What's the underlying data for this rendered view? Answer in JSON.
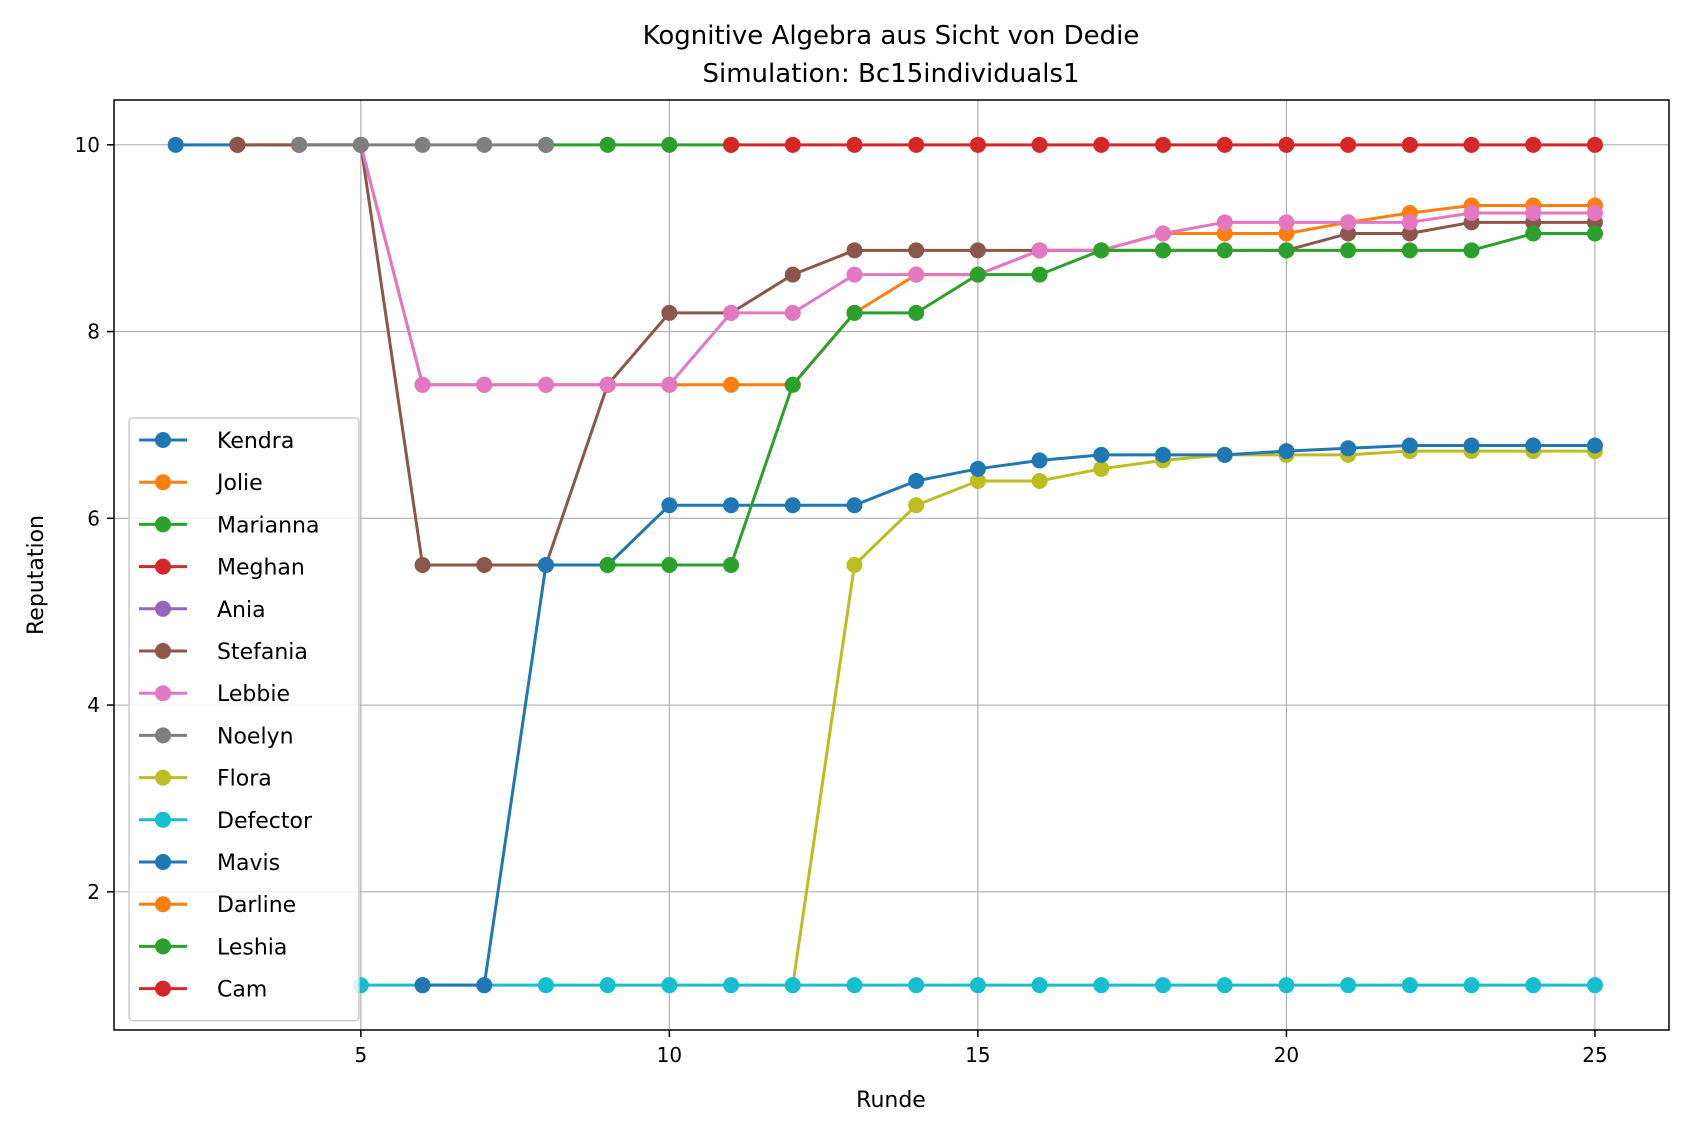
{
  "chart_data": {
    "type": "line",
    "title": "Kognitive Algebra aus Sicht von Dedie",
    "subtitle": "Simulation: Bc15individuals1",
    "xlabel": "Runde",
    "ylabel": "Reputation",
    "xlim": [
      1,
      26.2
    ],
    "ylim": [
      0.52,
      10.48
    ],
    "xticks": [
      5,
      10,
      15,
      20,
      25
    ],
    "yticks": [
      2,
      4,
      6,
      8,
      10
    ],
    "grid": true,
    "legend_position": "lower-left",
    "series": [
      {
        "name": "Kendra",
        "color": "#1f77b4",
        "x": [
          2,
          3
        ],
        "y": [
          10,
          10
        ]
      },
      {
        "name": "Jolie",
        "color": "#ff7f0e",
        "x": [
          3,
          4,
          5,
          6,
          7,
          8,
          9,
          10,
          11,
          12,
          13,
          14,
          15,
          16,
          17,
          18,
          19,
          20,
          21,
          22,
          23,
          24,
          25
        ],
        "y": [
          10,
          10,
          10,
          7.43,
          7.43,
          7.43,
          7.43,
          7.43,
          7.43,
          7.43,
          8.2,
          8.61,
          8.61,
          8.87,
          8.87,
          9.05,
          9.05,
          9.05,
          9.17,
          9.27,
          9.35,
          9.35,
          9.35
        ]
      },
      {
        "name": "Marianna",
        "color": "#2ca02c",
        "x": [
          8,
          9,
          10,
          11
        ],
        "y": [
          10,
          10,
          10,
          10
        ]
      },
      {
        "name": "Meghan",
        "color": "#d62728",
        "x": [
          11,
          12,
          13,
          14,
          15,
          16,
          17,
          18,
          19,
          20,
          21,
          22,
          23,
          24,
          25
        ],
        "y": [
          10,
          10,
          10,
          10,
          10,
          10,
          10,
          10,
          10,
          10,
          10,
          10,
          10,
          10,
          10
        ]
      },
      {
        "name": "Ania",
        "color": "#9467bd",
        "x": [],
        "y": []
      },
      {
        "name": "Stefania",
        "color": "#8c564b",
        "x": [
          3,
          4,
          5,
          6,
          7,
          8,
          9,
          10,
          11,
          12,
          13,
          14,
          15,
          16,
          17,
          18,
          19,
          20,
          21,
          22,
          23,
          24,
          25
        ],
        "y": [
          10,
          10,
          10,
          5.5,
          5.5,
          5.5,
          7.43,
          8.2,
          8.2,
          8.61,
          8.87,
          8.87,
          8.87,
          8.87,
          8.87,
          8.87,
          8.87,
          8.87,
          9.05,
          9.05,
          9.17,
          9.17,
          9.17
        ]
      },
      {
        "name": "Lebbie",
        "color": "#e377c2",
        "x": [
          5,
          6,
          7,
          8,
          9,
          10,
          11,
          12,
          13,
          14,
          15,
          16,
          17,
          18,
          19,
          20,
          21,
          22,
          23,
          24,
          25
        ],
        "y": [
          10,
          7.43,
          7.43,
          7.43,
          7.43,
          7.43,
          8.2,
          8.2,
          8.61,
          8.61,
          8.61,
          8.87,
          8.87,
          9.05,
          9.17,
          9.17,
          9.17,
          9.17,
          9.27,
          9.27,
          9.27
        ]
      },
      {
        "name": "Noelyn",
        "color": "#7f7f7f",
        "x": [
          4,
          5,
          6,
          7,
          8
        ],
        "y": [
          10,
          10,
          10,
          10,
          10
        ]
      },
      {
        "name": "Flora",
        "color": "#bcbd22",
        "x": [
          12,
          13,
          14,
          15,
          16,
          17,
          18,
          19,
          20,
          21,
          22,
          23,
          24,
          25
        ],
        "y": [
          1,
          5.5,
          6.14,
          6.4,
          6.4,
          6.53,
          6.62,
          6.68,
          6.68,
          6.68,
          6.72,
          6.72,
          6.72,
          6.72
        ]
      },
      {
        "name": "Defector",
        "color": "#17becf",
        "x": [
          5,
          6,
          7,
          8,
          9,
          10,
          11,
          12,
          13,
          14,
          15,
          16,
          17,
          18,
          19,
          20,
          21,
          22,
          23,
          24,
          25
        ],
        "y": [
          1,
          1,
          1,
          1,
          1,
          1,
          1,
          1,
          1,
          1,
          1,
          1,
          1,
          1,
          1,
          1,
          1,
          1,
          1,
          1,
          1
        ]
      },
      {
        "name": "Mavis",
        "color": "#1f77b4",
        "x": [
          6,
          7,
          8,
          9,
          10,
          11,
          12,
          13,
          14,
          15,
          16,
          17,
          18,
          19,
          20,
          21,
          22,
          23,
          24,
          25
        ],
        "y": [
          1,
          1,
          5.5,
          5.5,
          6.14,
          6.14,
          6.14,
          6.14,
          6.4,
          6.53,
          6.62,
          6.68,
          6.68,
          6.68,
          6.72,
          6.75,
          6.78,
          6.78,
          6.78,
          6.78
        ]
      },
      {
        "name": "Darline",
        "color": "#ff7f0e",
        "x": [],
        "y": []
      },
      {
        "name": "Leshia",
        "color": "#2ca02c",
        "x": [
          9,
          10,
          11,
          12,
          13,
          14,
          15,
          16,
          17,
          18,
          19,
          20,
          21,
          22,
          23,
          24,
          25
        ],
        "y": [
          5.5,
          5.5,
          5.5,
          7.43,
          8.2,
          8.2,
          8.61,
          8.61,
          8.87,
          8.87,
          8.87,
          8.87,
          8.87,
          8.87,
          8.87,
          9.05,
          9.05
        ]
      },
      {
        "name": "Cam",
        "color": "#d62728",
        "x": [],
        "y": []
      }
    ]
  }
}
